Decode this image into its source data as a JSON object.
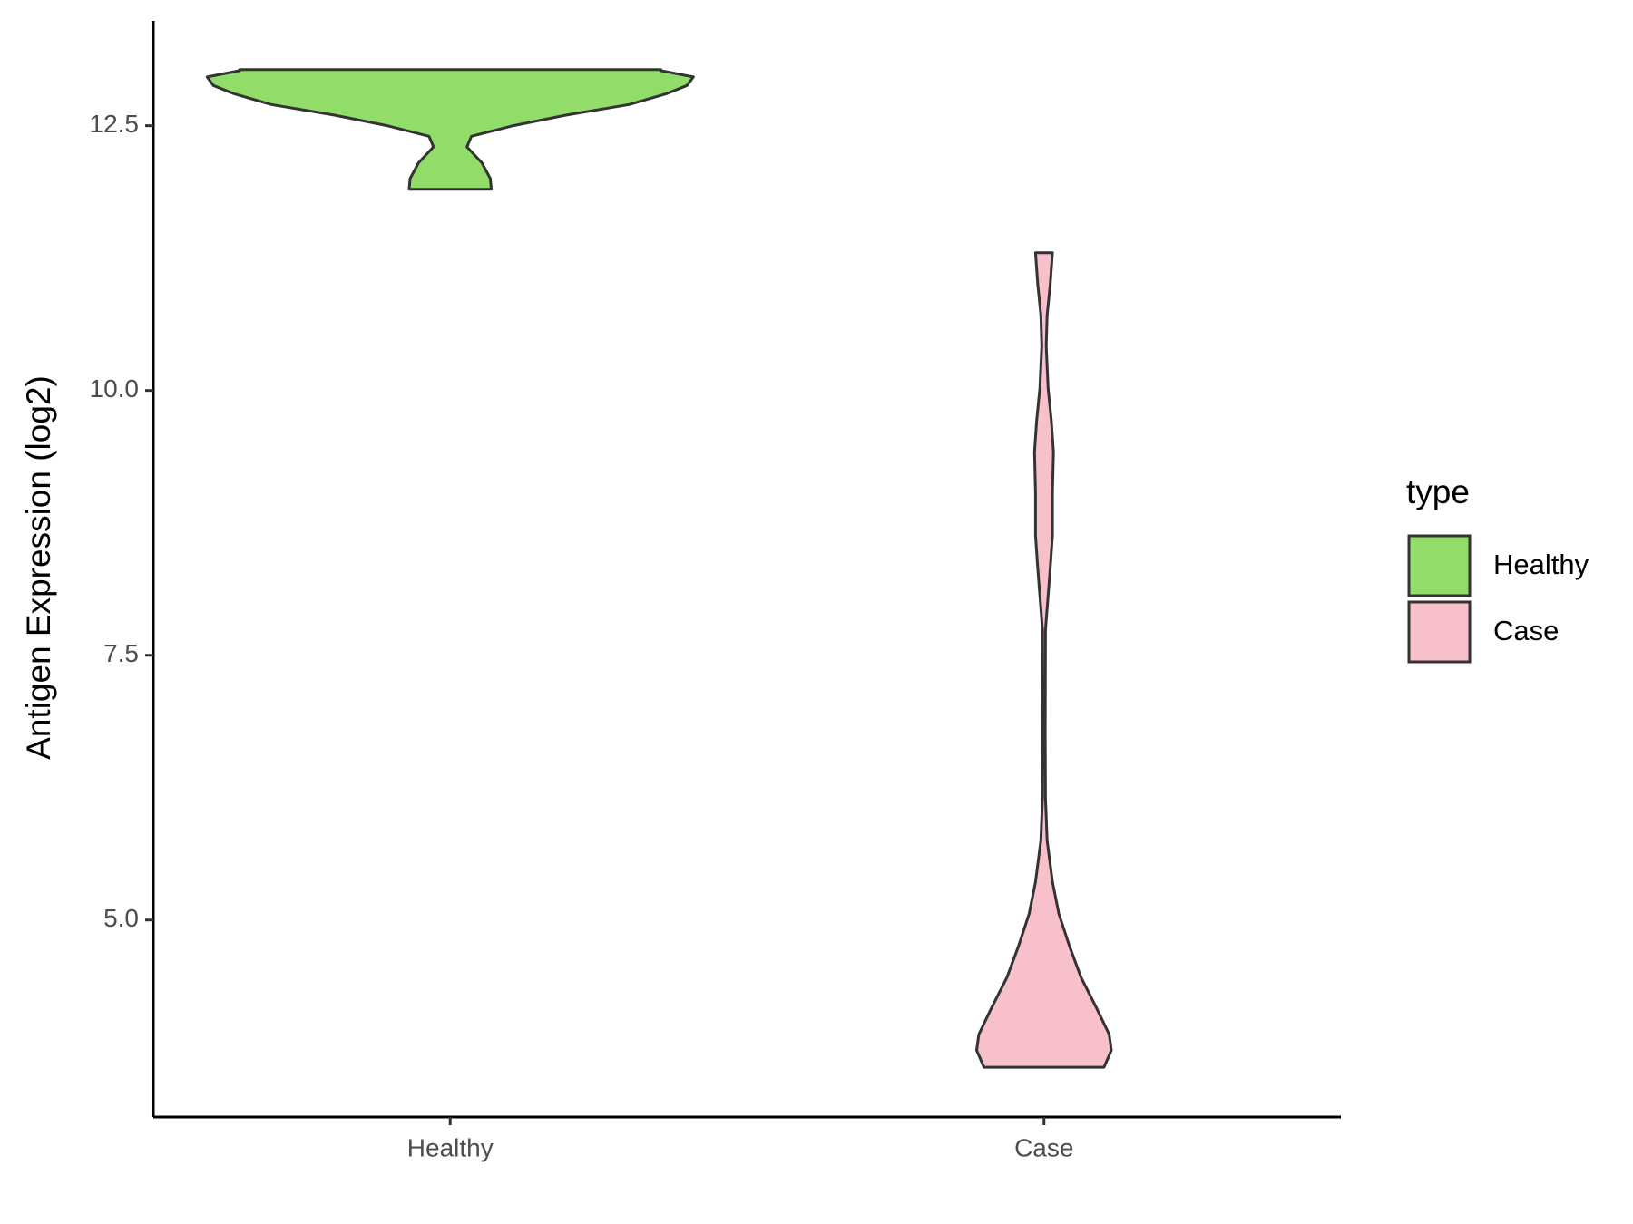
{
  "chart_data": {
    "type": "violin",
    "y_label": "Antigen Expression (log2)",
    "categories": [
      "Healthy",
      "Case"
    ],
    "legend_title": "type",
    "ylim": [
      3.14,
      13.49
    ],
    "yticks": [
      {
        "value": 5,
        "label": "5.0"
      },
      {
        "value": 7.5,
        "label": "7.5"
      },
      {
        "value": 10,
        "label": "10.0"
      },
      {
        "value": 12.5,
        "label": "12.5"
      }
    ],
    "series": [
      {
        "name": "Healthy",
        "color": "#92dd6a",
        "y": [
          11.9,
          12.0,
          12.15,
          12.3,
          12.4,
          12.5,
          12.6,
          12.7,
          12.8,
          12.88,
          12.96,
          13.02,
          13.03
        ],
        "density": [
          0.169,
          0.165,
          0.13,
          0.069,
          0.087,
          0.26,
          0.476,
          0.736,
          0.887,
          0.974,
          1,
          0.866,
          0.866
        ]
      },
      {
        "name": "Case",
        "color": "#f8c0cb",
        "y": [
          3.61,
          3.77,
          3.92,
          4.17,
          4.46,
          4.76,
          5.06,
          5.36,
          5.75,
          6.15,
          6.75,
          7.74,
          7.94,
          8.33,
          8.63,
          9.03,
          9.42,
          9.72,
          10.02,
          10.42,
          10.71,
          11.01,
          11.3
        ],
        "density": [
          0.247,
          0.277,
          0.268,
          0.216,
          0.152,
          0.104,
          0.061,
          0.035,
          0.013,
          0.006,
          0.005,
          0.006,
          0.013,
          0.026,
          0.035,
          0.035,
          0.039,
          0.03,
          0.017,
          0.009,
          0.013,
          0.026,
          0.035
        ]
      }
    ]
  }
}
